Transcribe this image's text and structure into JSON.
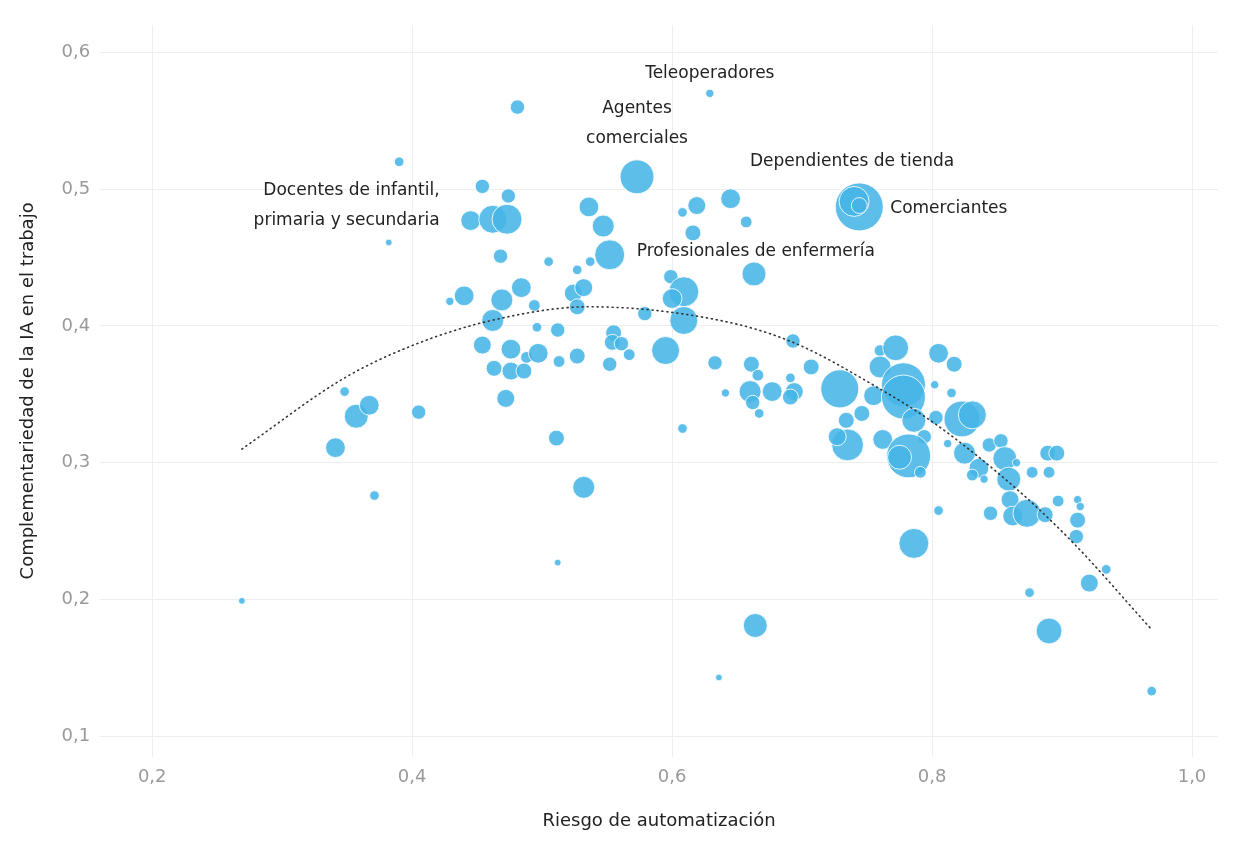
{
  "chart_data": {
    "type": "bubble",
    "xlabel": "Riesgo de automatización",
    "ylabel": "Complementariedad de la IA en el trabajo",
    "xlim": [
      0.16,
      1.02
    ],
    "ylim": [
      0.085,
      0.62
    ],
    "xticks": [
      {
        "value": 0.2,
        "label": "0,2"
      },
      {
        "value": 0.4,
        "label": "0,4"
      },
      {
        "value": 0.6,
        "label": "0,6"
      },
      {
        "value": 0.8,
        "label": "0,8"
      },
      {
        "value": 1.0,
        "label": "1,0"
      }
    ],
    "yticks": [
      {
        "value": 0.1,
        "label": "0,1"
      },
      {
        "value": 0.2,
        "label": "0,2"
      },
      {
        "value": 0.3,
        "label": "0,3"
      },
      {
        "value": 0.4,
        "label": "0,4"
      },
      {
        "value": 0.5,
        "label": "0,5"
      },
      {
        "value": 0.6,
        "label": "0,6"
      }
    ],
    "grid": true,
    "legend": false,
    "series": [
      {
        "color": "#45b5e6",
        "x": [
          0.269,
          0.341,
          0.348,
          0.357,
          0.367,
          0.371,
          0.382,
          0.39,
          0.405,
          0.429,
          0.44,
          0.445,
          0.454,
          0.462,
          0.473,
          0.474,
          0.481,
          0.468,
          0.505,
          0.527,
          0.537,
          0.552,
          0.547,
          0.536,
          0.573,
          0.469,
          0.484,
          0.494,
          0.524,
          0.532,
          0.527,
          0.579,
          0.599,
          0.609,
          0.6,
          0.609,
          0.462,
          0.454,
          0.476,
          0.496,
          0.512,
          0.488,
          0.497,
          0.463,
          0.476,
          0.486,
          0.513,
          0.527,
          0.555,
          0.554,
          0.561,
          0.552,
          0.567,
          0.595,
          0.633,
          0.472,
          0.511,
          0.608,
          0.532,
          0.512,
          0.636,
          0.693,
          0.661,
          0.666,
          0.641,
          0.66,
          0.662,
          0.667,
          0.677,
          0.691,
          0.694,
          0.691,
          0.707,
          0.729,
          0.734,
          0.746,
          0.735,
          0.727,
          0.762,
          0.755,
          0.76,
          0.772,
          0.76,
          0.778,
          0.778,
          0.786,
          0.794,
          0.782,
          0.775,
          0.791,
          0.802,
          0.805,
          0.817,
          0.815,
          0.803,
          0.812,
          0.823,
          0.831,
          0.825,
          0.836,
          0.831,
          0.84,
          0.844,
          0.853,
          0.856,
          0.859,
          0.865,
          0.877,
          0.89,
          0.889,
          0.896,
          0.86,
          0.845,
          0.862,
          0.873,
          0.887,
          0.897,
          0.912,
          0.914,
          0.912,
          0.911,
          0.934,
          0.921,
          0.875,
          0.89,
          0.969,
          0.786,
          0.805,
          0.664,
          0.629,
          0.619,
          0.608,
          0.645,
          0.657,
          0.616,
          0.663,
          0.744,
          0.74,
          0.744
        ],
        "values": [
          0.199,
          0.311,
          0.352,
          0.334,
          0.342,
          0.276,
          0.461,
          0.52,
          0.337,
          0.418,
          0.422,
          0.477,
          0.502,
          0.478,
          0.478,
          0.495,
          0.56,
          0.451,
          0.447,
          0.441,
          0.447,
          0.452,
          0.473,
          0.487,
          0.509,
          0.419,
          0.428,
          0.415,
          0.424,
          0.428,
          0.414,
          0.409,
          0.436,
          0.425,
          0.42,
          0.404,
          0.404,
          0.386,
          0.383,
          0.399,
          0.397,
          0.377,
          0.38,
          0.369,
          0.367,
          0.367,
          0.374,
          0.378,
          0.395,
          0.388,
          0.387,
          0.372,
          0.379,
          0.382,
          0.373,
          0.347,
          0.318,
          0.325,
          0.282,
          0.227,
          0.143,
          0.389,
          0.372,
          0.364,
          0.351,
          0.352,
          0.344,
          0.336,
          0.352,
          0.362,
          0.352,
          0.348,
          0.37,
          0.354,
          0.331,
          0.336,
          0.313,
          0.319,
          0.317,
          0.349,
          0.382,
          0.384,
          0.37,
          0.357,
          0.348,
          0.331,
          0.319,
          0.305,
          0.304,
          0.293,
          0.357,
          0.38,
          0.372,
          0.351,
          0.333,
          0.314,
          0.332,
          0.335,
          0.307,
          0.296,
          0.291,
          0.288,
          0.313,
          0.316,
          0.303,
          0.288,
          0.3,
          0.293,
          0.293,
          0.307,
          0.307,
          0.273,
          0.263,
          0.261,
          0.263,
          0.262,
          0.272,
          0.273,
          0.268,
          0.258,
          0.246,
          0.222,
          0.212,
          0.205,
          0.177,
          0.133,
          0.241,
          0.265,
          0.181,
          0.57,
          0.488,
          0.483,
          0.493,
          0.476,
          0.468,
          0.438,
          0.487,
          0.491,
          0.488
        ],
        "sizes": [
          0.02,
          0.17,
          0.04,
          0.25,
          0.17,
          0.04,
          0.02,
          0.04,
          0.09,
          0.03,
          0.17,
          0.17,
          0.09,
          0.34,
          0.39,
          0.09,
          0.09,
          0.09,
          0.04,
          0.04,
          0.04,
          0.39,
          0.21,
          0.17,
          0.5,
          0.21,
          0.17,
          0.06,
          0.14,
          0.14,
          0.11,
          0.09,
          0.09,
          0.39,
          0.17,
          0.34,
          0.21,
          0.14,
          0.17,
          0.04,
          0.09,
          0.06,
          0.17,
          0.11,
          0.14,
          0.11,
          0.06,
          0.11,
          0.11,
          0.11,
          0.09,
          0.09,
          0.06,
          0.34,
          0.09,
          0.14,
          0.11,
          0.04,
          0.21,
          0.02,
          0.02,
          0.09,
          0.11,
          0.06,
          0.03,
          0.21,
          0.09,
          0.04,
          0.17,
          0.04,
          0.14,
          0.11,
          0.11,
          0.63,
          0.11,
          0.11,
          0.44,
          0.14,
          0.17,
          0.17,
          0.06,
          0.29,
          0.21,
          0.84,
          0.84,
          0.25,
          0.09,
          0.84,
          0.25,
          0.06,
          0.03,
          0.17,
          0.11,
          0.04,
          0.09,
          0.03,
          0.56,
          0.34,
          0.21,
          0.17,
          0.06,
          0.03,
          0.09,
          0.09,
          0.25,
          0.25,
          0.03,
          0.06,
          0.06,
          0.11,
          0.11,
          0.14,
          0.09,
          0.17,
          0.34,
          0.11,
          0.06,
          0.03,
          0.03,
          0.11,
          0.09,
          0.04,
          0.14,
          0.04,
          0.29,
          0.04,
          0.39,
          0.04,
          0.25,
          0.03,
          0.14,
          0.04,
          0.17,
          0.06,
          0.11,
          0.25,
          1,
          0.39,
          0.11
        ]
      },
      {
        "type": "line",
        "color": "#333333",
        "line_style": "dotted",
        "x": [
          0.269,
          0.348,
          0.401,
          0.461,
          0.536,
          0.637,
          0.693,
          0.758,
          0.803,
          0.866,
          0.909,
          0.968
        ],
        "values": [
          0.31,
          0.362,
          0.386,
          0.404,
          0.414,
          0.404,
          0.388,
          0.355,
          0.328,
          0.28,
          0.241,
          0.179
        ]
      }
    ],
    "annotations": [
      {
        "text": "Teleoperadores",
        "x": 0.629,
        "y": 0.57
      },
      {
        "text": "Agentes comerciales",
        "x": 0.573,
        "y": 0.509
      },
      {
        "text": "Dependientes de tienda",
        "x": 0.74,
        "y": 0.491
      },
      {
        "text": "Comerciantes",
        "x": 0.744,
        "y": 0.487
      },
      {
        "text": "Profesionales de enfermería",
        "x": 0.552,
        "y": 0.452
      },
      {
        "text": "Docentes de infantil, primaria y secundaria",
        "x": 0.445,
        "y": 0.477
      }
    ]
  }
}
